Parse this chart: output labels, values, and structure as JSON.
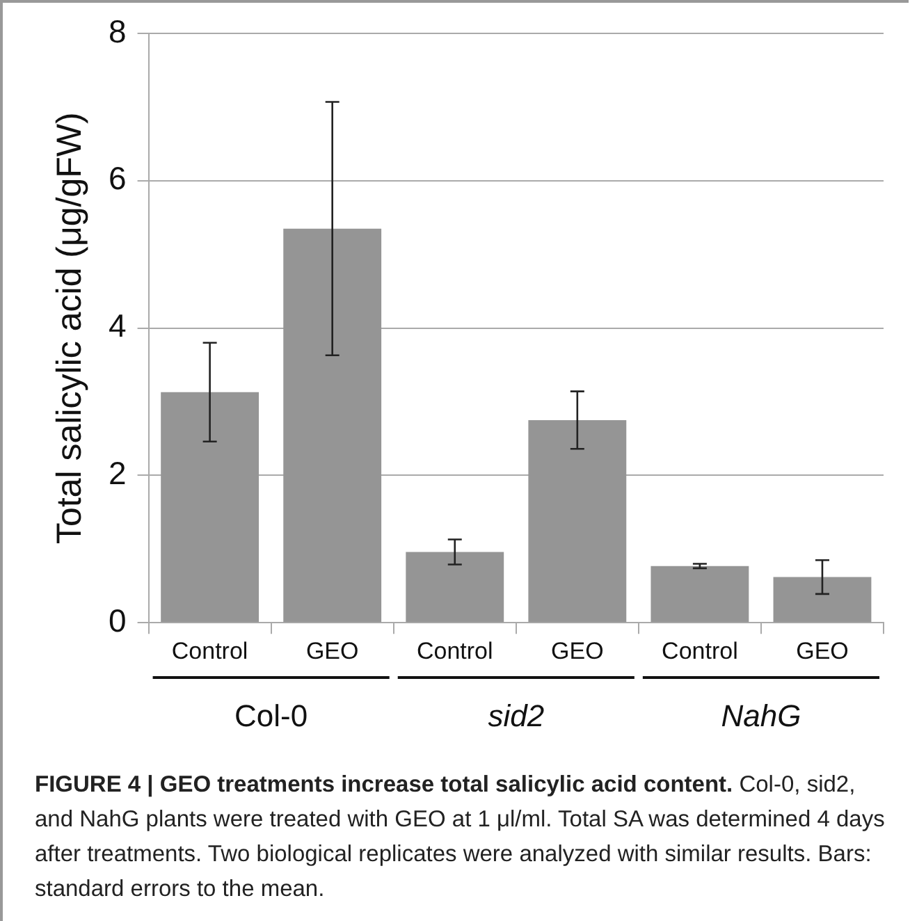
{
  "chart_data": {
    "type": "bar",
    "title": "FIGURE 4 | GEO treatments increase total salicylic acid content.",
    "ylabel": "Total salicylic acid (μg/gFW)",
    "categories": [
      "Control",
      "GEO",
      "Control",
      "GEO",
      "Control",
      "GEO"
    ],
    "values": [
      3.13,
      5.35,
      0.96,
      2.75,
      0.77,
      0.62
    ],
    "errors": [
      0.67,
      1.72,
      0.17,
      0.39,
      0.03,
      0.23
    ],
    "color": "#959595",
    "ylim": [
      0,
      8
    ],
    "yticks": [
      0,
      2,
      4,
      6,
      8
    ],
    "grid": "y",
    "annotations": [
      "Col-0",
      "sid2",
      "NahG",
      "Col-0, sid2, and NahG plants were treated with GEO at 1 μl/ml. Total SA was determined 4 days after treatments. Two biological replicates were analyzed with similar results. Bars: standard errors to the mean."
    ]
  }
}
